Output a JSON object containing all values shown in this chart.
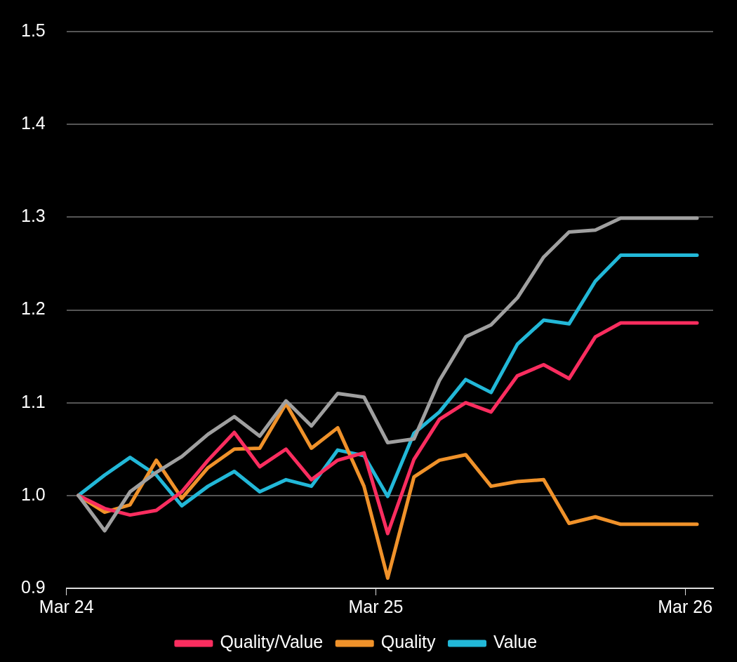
{
  "chart_data": {
    "type": "line",
    "x": [
      "2024-03-15",
      "2024-04-15",
      "2024-05-15",
      "2024-06-15",
      "2024-07-15",
      "2024-08-15",
      "2024-09-15",
      "2024-10-15",
      "2024-11-15",
      "2024-12-15",
      "2025-01-15",
      "2025-02-15",
      "2025-03-15",
      "2025-04-15",
      "2025-05-15",
      "2025-06-15",
      "2025-07-15",
      "2025-08-15",
      "2025-09-15",
      "2025-10-15",
      "2025-11-15",
      "2025-12-15",
      "2026-01-15",
      "2026-02-15",
      "2026-03-15"
    ],
    "series": [
      {
        "color": "#a0a0a0",
        "values": [
          1.0,
          0.962,
          1.004,
          1.025,
          1.042,
          1.066,
          1.085,
          1.064,
          1.102,
          1.075,
          1.11,
          1.106,
          1.057,
          1.061,
          1.124,
          1.171,
          1.184,
          1.213,
          1.257,
          1.284,
          1.286,
          1.299,
          1.299,
          1.299,
          1.299
        ]
      },
      {
        "name": "Quality/Value",
        "color": "#fa2d5f",
        "values": [
          1.0,
          0.986,
          0.979,
          0.984,
          1.004,
          1.038,
          1.068,
          1.031,
          1.05,
          1.017,
          1.038,
          1.046,
          0.959,
          1.039,
          1.082,
          1.1,
          1.09,
          1.129,
          1.141,
          1.126,
          1.171,
          1.186,
          1.186,
          1.186,
          1.186
        ]
      },
      {
        "name": "Quality",
        "color": "#f0922a",
        "values": [
          1.0,
          0.982,
          0.99,
          1.038,
          0.997,
          1.03,
          1.05,
          1.051,
          1.099,
          1.051,
          1.073,
          1.01,
          0.911,
          1.02,
          1.038,
          1.044,
          1.01,
          1.015,
          1.017,
          0.97,
          0.977,
          0.969,
          0.969,
          0.969,
          0.969
        ]
      },
      {
        "name": "Value",
        "color": "#22b8d8",
        "values": [
          1.0,
          1.022,
          1.041,
          1.022,
          0.989,
          1.01,
          1.026,
          1.004,
          1.017,
          1.01,
          1.049,
          1.043,
          0.999,
          1.067,
          1.09,
          1.125,
          1.111,
          1.163,
          1.189,
          1.185,
          1.231,
          1.259,
          1.259,
          1.259,
          1.259
        ]
      }
    ],
    "xlim": [
      "2024-03-01",
      "2026-04-03"
    ],
    "xticks": [
      {
        "value": "2024-03-01",
        "label": "Mar 24"
      },
      {
        "value": "2025-03-01",
        "label": "Mar 25"
      },
      {
        "value": "2026-03-01",
        "label": "Mar 26"
      }
    ],
    "ylim": [
      0.9,
      1.5
    ],
    "yticks": [
      {
        "value": 0.9,
        "label": "0.9"
      },
      {
        "value": 1.0,
        "label": "1.0"
      },
      {
        "value": 1.1,
        "label": "1.1"
      },
      {
        "value": 1.2,
        "label": "1.2"
      },
      {
        "value": 1.3,
        "label": "1.3"
      },
      {
        "value": 1.4,
        "label": "1.4"
      },
      {
        "value": 1.5,
        "label": "1.5"
      }
    ],
    "grid": "y",
    "legend": "bottom",
    "marker": "none",
    "line_style": "solid"
  }
}
